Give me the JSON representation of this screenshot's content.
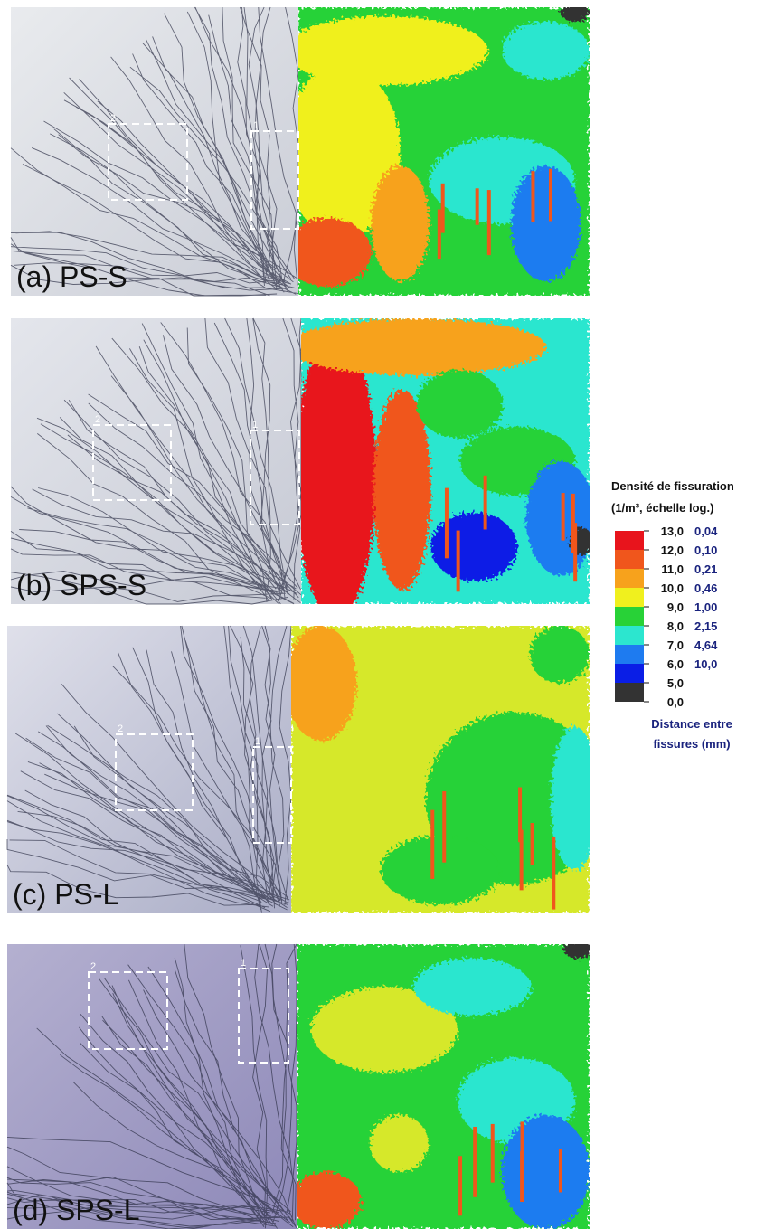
{
  "panels": [
    {
      "label": "(a) PS-S",
      "box_labels": [
        "1",
        "2"
      ]
    },
    {
      "label": "(b) SPS-S",
      "box_labels": [
        "1",
        "2"
      ]
    },
    {
      "label": "(c) PS-L",
      "box_labels": [
        "1",
        "2"
      ]
    },
    {
      "label": "(d) SPS-L",
      "box_labels": [
        "1",
        "2"
      ]
    }
  ],
  "legend": {
    "title": [
      "Densité de fissuration",
      "(1/m³, échelle log.)"
    ],
    "levels": [
      "13,0",
      "12,0",
      "11,0",
      "10,0",
      "9,0",
      "8,0",
      "7,0",
      "6,0",
      "5,0",
      "0,0"
    ],
    "colors": [
      "#e8141c",
      "#f0561c",
      "#f7a21c",
      "#f0f01e",
      "#28d237",
      "#2ce6cf",
      "#1e7bf0",
      "#0a1ee6",
      "#333333"
    ],
    "distances": [
      "0,04",
      "0,10",
      "0,21",
      "0,46",
      "1,00",
      "2,15",
      "4,64",
      "10,0"
    ],
    "footer": [
      "Distance entre",
      "fissures (mm)"
    ]
  }
}
